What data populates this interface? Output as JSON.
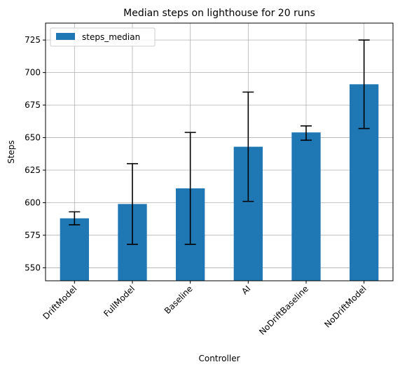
{
  "chart_data": {
    "type": "bar",
    "title": "Median steps on lighthouse for 20 runs",
    "xlabel": "Controller",
    "ylabel": "Steps",
    "categories": [
      "DriftModel",
      "FullModel",
      "Baseline",
      "AI",
      "NoDriftBaseline",
      "NoDriftModel"
    ],
    "series": [
      {
        "name": "steps_median",
        "values": [
          588,
          599,
          611,
          643,
          654,
          691
        ],
        "err_low": [
          583,
          568,
          568,
          601,
          648,
          657
        ],
        "err_high": [
          593,
          630,
          654,
          685,
          659,
          725
        ]
      }
    ],
    "ylim": [
      540,
      738
    ],
    "yticks": [
      550,
      575,
      600,
      625,
      650,
      675,
      700,
      725
    ],
    "grid": true,
    "legend": "top-left",
    "colors": {
      "bar": "#1f77b4",
      "grid": "#b0b0b0",
      "error": "#000000"
    }
  }
}
